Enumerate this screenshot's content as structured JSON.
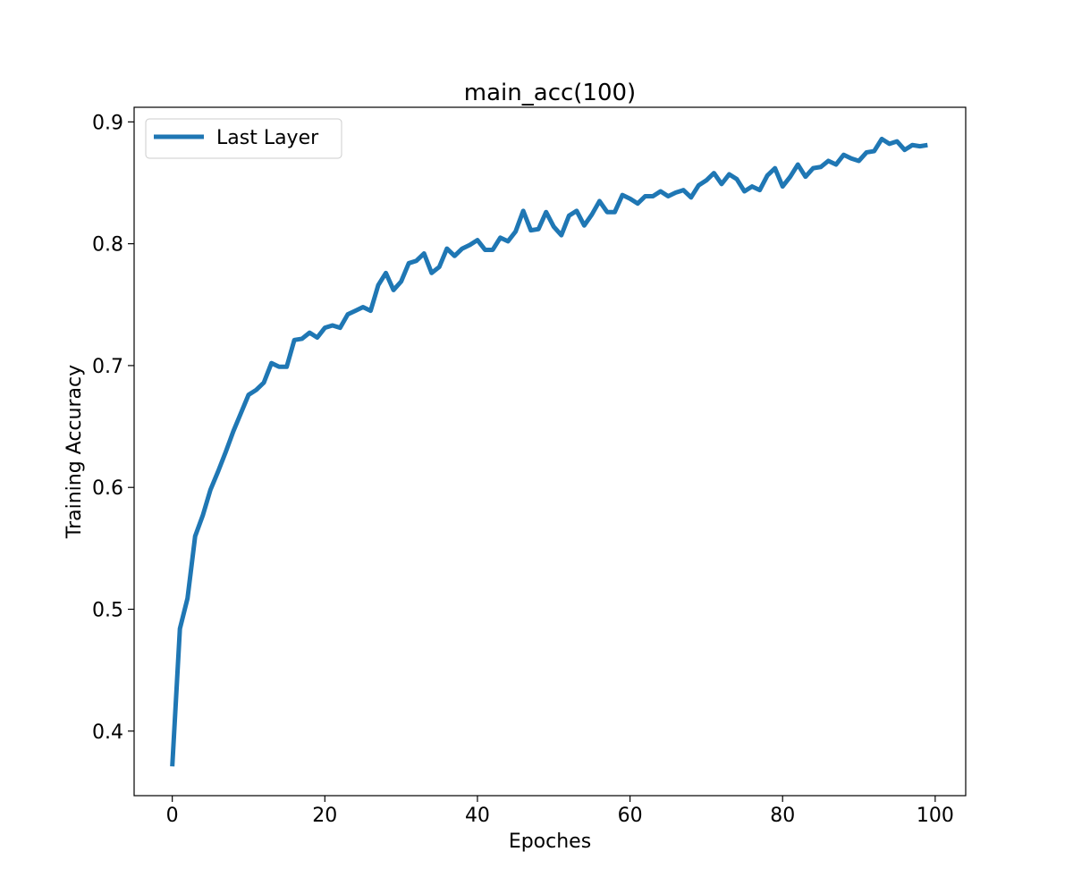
{
  "chart_data": {
    "type": "line",
    "title": "main_acc(100)",
    "xlabel": "Epoches",
    "ylabel": "Training Accuracy",
    "xlim": [
      -5,
      104
    ],
    "ylim": [
      0.347,
      0.912
    ],
    "xticks": [
      0,
      20,
      40,
      60,
      80,
      100
    ],
    "yticks": [
      0.4,
      0.5,
      0.6,
      0.7,
      0.8,
      0.9
    ],
    "grid": false,
    "legend": {
      "placement": "top-left"
    },
    "series": [
      {
        "name": "Last Layer",
        "color": "#1f77b4",
        "x": [
          0,
          1,
          2,
          3,
          4,
          5,
          6,
          7,
          8,
          9,
          10,
          11,
          12,
          13,
          14,
          15,
          16,
          17,
          18,
          19,
          20,
          21,
          22,
          23,
          24,
          25,
          26,
          27,
          28,
          29,
          30,
          31,
          32,
          33,
          34,
          35,
          36,
          37,
          38,
          39,
          40,
          41,
          42,
          43,
          44,
          45,
          46,
          47,
          48,
          49,
          50,
          51,
          52,
          53,
          54,
          55,
          56,
          57,
          58,
          59,
          60,
          61,
          62,
          63,
          64,
          65,
          66,
          67,
          68,
          69,
          70,
          71,
          72,
          73,
          74,
          75,
          76,
          77,
          78,
          79,
          80,
          81,
          82,
          83,
          84,
          85,
          86,
          87,
          88,
          89,
          90,
          91,
          92,
          93,
          94,
          95,
          96,
          97,
          98,
          99
        ],
        "y": [
          0.371,
          0.484,
          0.509,
          0.56,
          0.577,
          0.598,
          0.613,
          0.629,
          0.646,
          0.661,
          0.676,
          0.68,
          0.686,
          0.702,
          0.699,
          0.699,
          0.721,
          0.722,
          0.727,
          0.723,
          0.731,
          0.733,
          0.731,
          0.742,
          0.745,
          0.748,
          0.745,
          0.766,
          0.776,
          0.762,
          0.769,
          0.784,
          0.786,
          0.792,
          0.776,
          0.781,
          0.796,
          0.79,
          0.796,
          0.799,
          0.803,
          0.795,
          0.795,
          0.805,
          0.802,
          0.81,
          0.827,
          0.811,
          0.812,
          0.826,
          0.814,
          0.807,
          0.823,
          0.827,
          0.815,
          0.824,
          0.835,
          0.826,
          0.826,
          0.84,
          0.837,
          0.833,
          0.839,
          0.839,
          0.843,
          0.839,
          0.842,
          0.844,
          0.838,
          0.848,
          0.852,
          0.858,
          0.849,
          0.857,
          0.853,
          0.843,
          0.847,
          0.844,
          0.856,
          0.862,
          0.847,
          0.855,
          0.865,
          0.855,
          0.862,
          0.863,
          0.868,
          0.865,
          0.873,
          0.87,
          0.868,
          0.875,
          0.876,
          0.886,
          0.882,
          0.884,
          0.877,
          0.881,
          0.88,
          0.881
        ]
      }
    ]
  }
}
